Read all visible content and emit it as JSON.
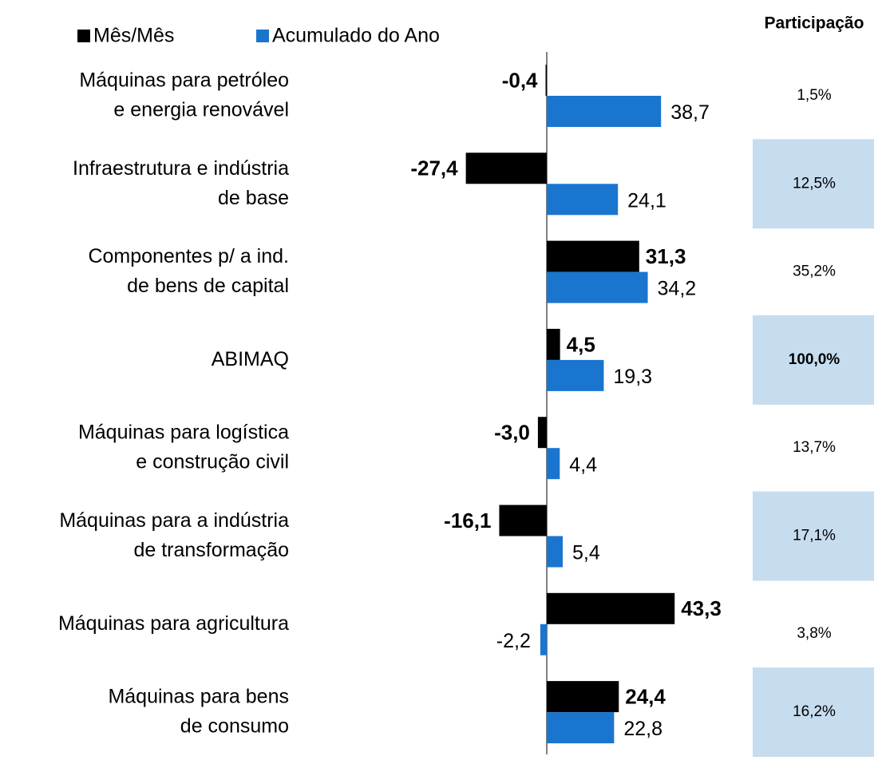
{
  "chart_data": {
    "type": "bar",
    "orientation": "horizontal",
    "categories": [
      "Máquinas para petróleo\ne energia renovável",
      "Infraestrutura e indústria\nde base",
      "Componentes p/ a ind.\nde bens de capital",
      "ABIMAQ",
      "Máquinas para logística\ne construção civil",
      "Máquinas para a indústria\nde transformação",
      "Máquinas para agricultura",
      "Máquinas para bens\nde consumo"
    ],
    "series": [
      {
        "name": "Mês/Mês",
        "color": "#000000",
        "values": [
          -0.4,
          -27.4,
          31.3,
          4.5,
          -3.0,
          -16.1,
          43.3,
          24.4
        ],
        "value_labels": [
          "-0,4",
          "-27,4",
          "31,3",
          "4,5",
          "-3,0",
          "-16,1",
          "43,3",
          "24,4"
        ]
      },
      {
        "name": "Acumulado do Ano",
        "color": "#1a75cf",
        "values": [
          38.7,
          24.1,
          34.2,
          19.3,
          4.4,
          5.4,
          -2.2,
          22.8
        ],
        "value_labels": [
          "38,7",
          "24,1",
          "34,2",
          "19,3",
          "4,4",
          "5,4",
          "-2,2",
          "22,8"
        ]
      }
    ],
    "share": {
      "title": "Participação",
      "labels": [
        "1,5%",
        "12,5%",
        "35,2%",
        "100,0%",
        "13,7%",
        "17,1%",
        "3,8%",
        "16,2%"
      ]
    },
    "legend": "top-left"
  }
}
